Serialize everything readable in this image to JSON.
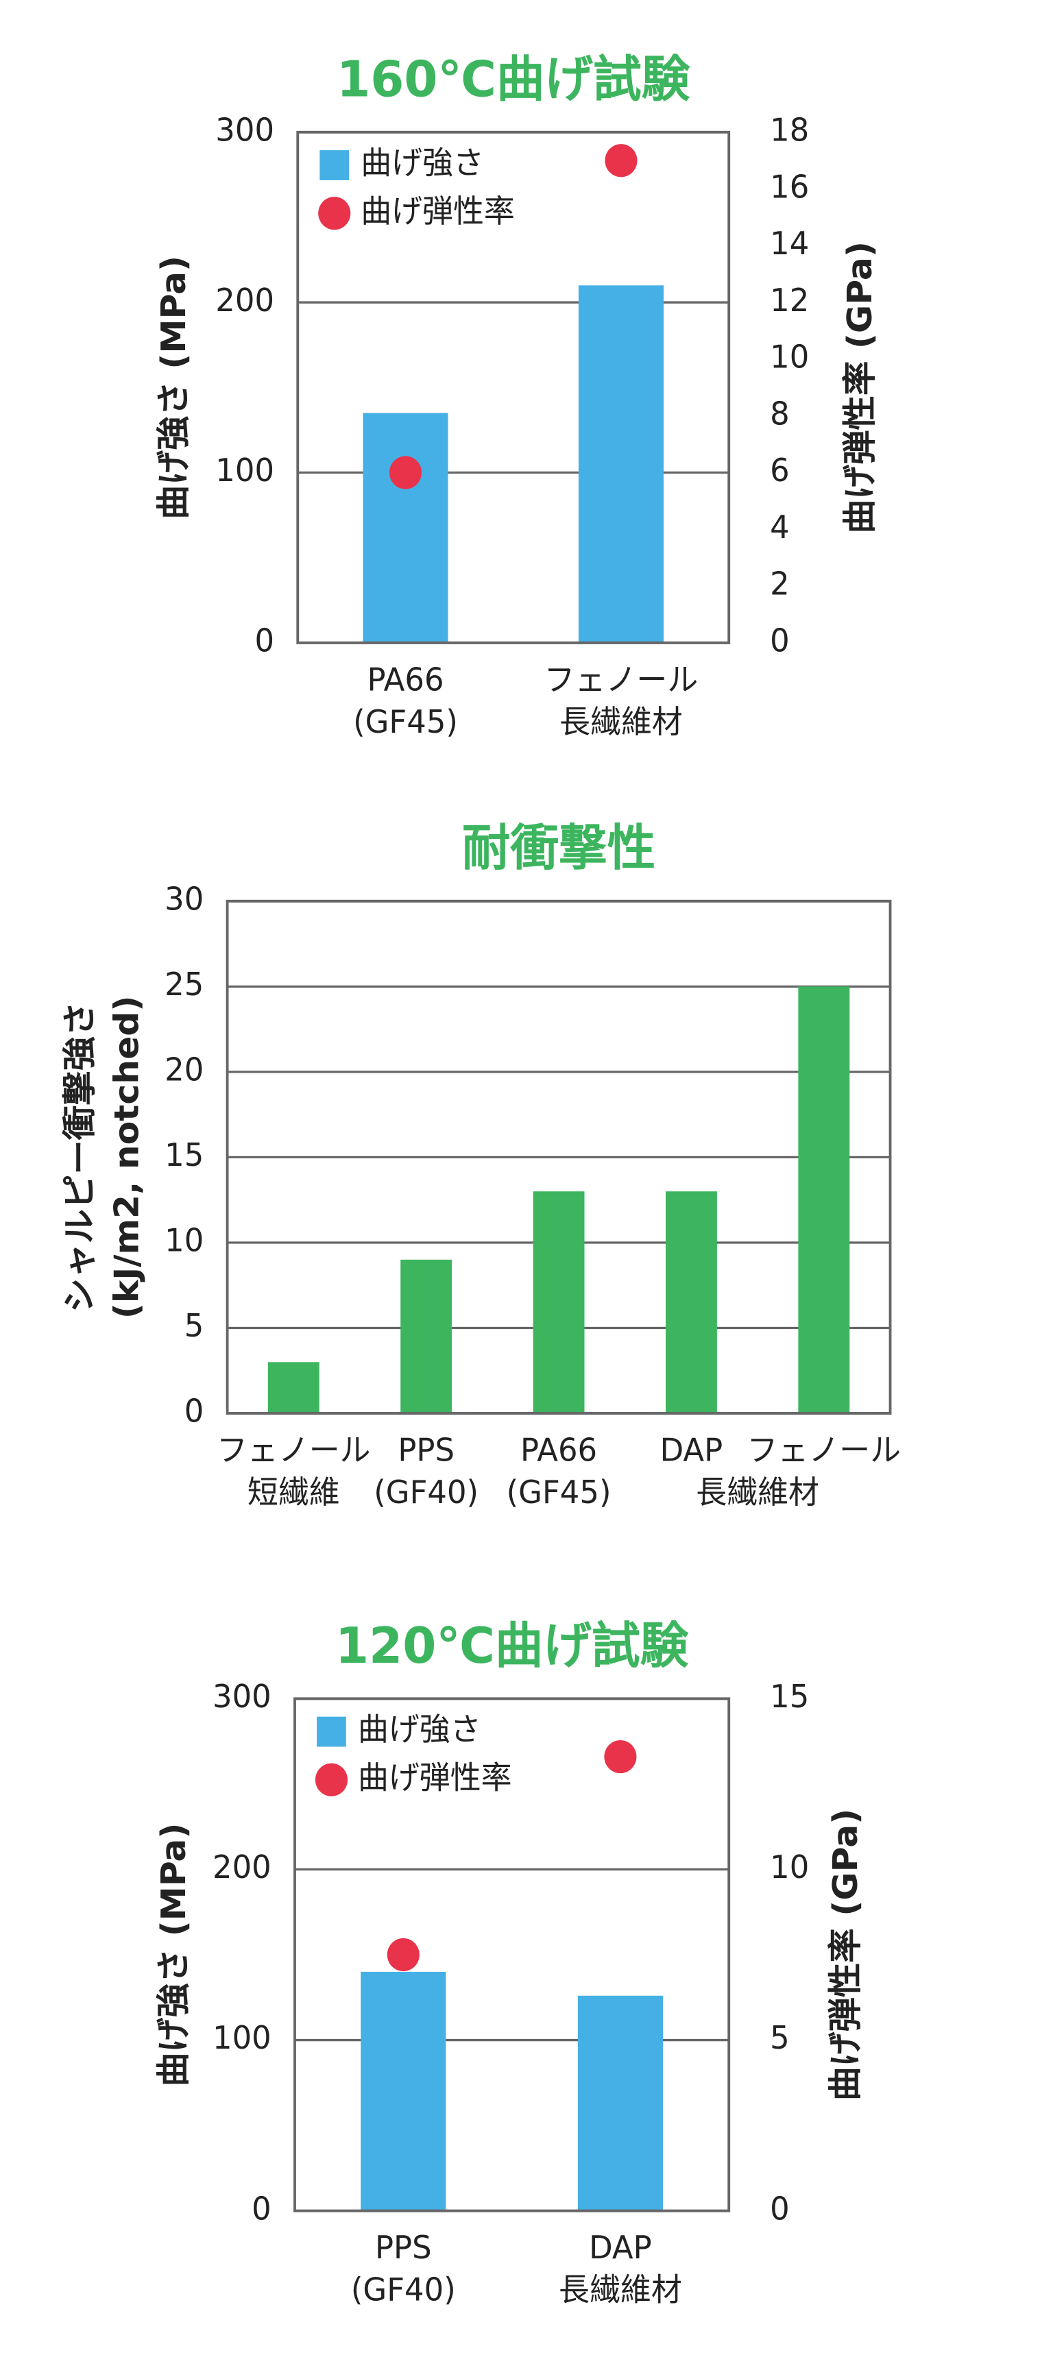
{
  "chart_data": [
    {
      "type": "bar",
      "title": "160℃曲げ試験",
      "categories": [
        [
          "PA66",
          "(GF45)"
        ],
        [
          "フェノール",
          "長繊維材"
        ]
      ],
      "category_colors": [
        "#222222",
        "#e8334a"
      ],
      "series": [
        {
          "name": "曲げ強さ",
          "color": "#45b0e5",
          "values": [
            135,
            210
          ]
        },
        {
          "name": "曲げ弾性率",
          "color": "#e8334a",
          "values": [
            6,
            17
          ],
          "axis": "y2",
          "type": "scatter"
        }
      ],
      "ylabel": "曲げ強さ (MPa)",
      "y2label": "曲げ弾性率 (GPa)",
      "ylim": [
        0,
        300
      ],
      "yticks": [
        0,
        100,
        200,
        300
      ],
      "y2lim": [
        0,
        18
      ],
      "y2ticks": [
        0,
        2,
        4,
        6,
        8,
        10,
        12,
        14,
        16,
        18
      ],
      "grid": true,
      "legend": "upper left"
    },
    {
      "type": "bar",
      "title": "耐衝撃性",
      "categories": [
        [
          "フェノール",
          "短繊維"
        ],
        [
          "PPS",
          "(GF40)"
        ],
        [
          "PA66",
          "(GF45)"
        ],
        [
          "DAP"
        ],
        [
          "フェノール"
        ]
      ],
      "category_colors": [
        "#222222",
        "#222222",
        "#222222",
        "#e8334a",
        "#e8334a"
      ],
      "category_group": {
        "label": "長繊維材",
        "categories": [
          3,
          4
        ]
      },
      "series": [
        {
          "color": "#3cb55e",
          "values": [
            3,
            9,
            13,
            13,
            25
          ]
        }
      ],
      "ylabel": [
        "シャルピー衝撃強さ",
        "(kJ/m2, notched)"
      ],
      "ylim": [
        0,
        30
      ],
      "yticks": [
        0,
        5,
        10,
        15,
        20,
        25,
        30
      ],
      "grid": true
    },
    {
      "type": "bar",
      "title": "120℃曲げ試験",
      "categories": [
        [
          "PPS",
          "(GF40)"
        ],
        [
          "DAP",
          "長繊維材"
        ]
      ],
      "category_colors": [
        "#222222",
        "#e8334a"
      ],
      "series": [
        {
          "name": "曲げ強さ",
          "color": "#45b0e5",
          "values": [
            140,
            126
          ]
        },
        {
          "name": "曲げ弾性率",
          "color": "#e8334a",
          "values": [
            7.5,
            13.3
          ],
          "axis": "y2",
          "type": "scatter"
        }
      ],
      "ylabel": "曲げ強さ (MPa)",
      "y2label": "曲げ弾性率 (GPa)",
      "ylim": [
        0,
        300
      ],
      "yticks": [
        0,
        100,
        200,
        300
      ],
      "y2lim": [
        0,
        15
      ],
      "y2ticks": [
        0,
        5,
        10,
        15
      ],
      "grid": true,
      "legend": "upper left"
    }
  ]
}
